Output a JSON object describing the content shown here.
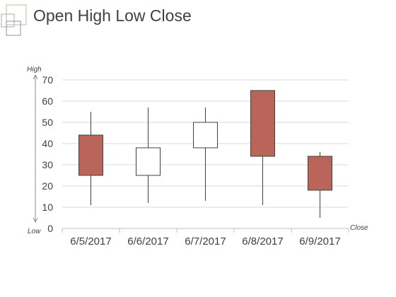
{
  "page": {
    "title": "Open High Low Close"
  },
  "theme": {
    "bear_fill": "#b9655a",
    "bull_fill": "#ffffff",
    "stroke": "#404040",
    "grid": "#d9d9d9",
    "text": "#404040",
    "logo_colors": [
      "#a8a8a8",
      "#7d9a9a",
      "#c8b4a0"
    ]
  },
  "chart_data": {
    "type": "candlestick",
    "title": "Open High Low Close",
    "categories": [
      "6/5/2017",
      "6/6/2017",
      "6/7/2017",
      "6/8/2017",
      "6/9/2017"
    ],
    "open": [
      44,
      25,
      38,
      65,
      34
    ],
    "high": [
      55,
      57,
      57,
      65,
      36
    ],
    "low": [
      11,
      12,
      13,
      11,
      5
    ],
    "close": [
      25,
      38,
      50,
      34,
      18
    ],
    "ylim": [
      0,
      70
    ],
    "yticks": [
      0,
      10,
      20,
      30,
      40,
      50,
      60,
      70
    ],
    "grid": true,
    "axis_annotations": {
      "high": "High",
      "low": "Low",
      "close": "Close"
    }
  }
}
